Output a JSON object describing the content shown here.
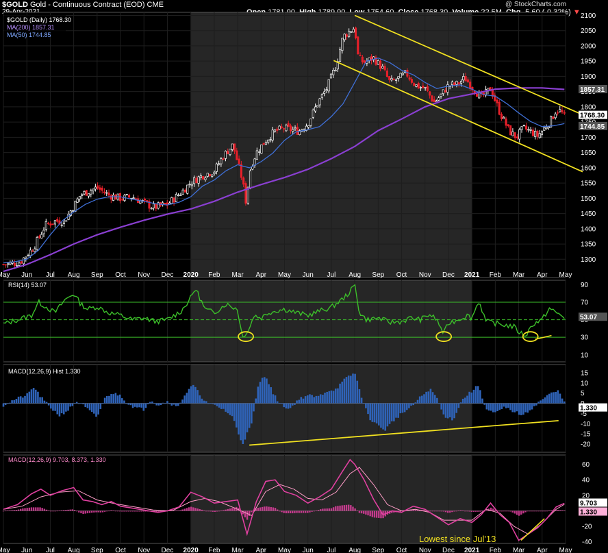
{
  "header": {
    "symbol": "$GOLD",
    "title": "Gold - Continuous Contract (EOD)",
    "exchange": "CME",
    "date": "29-Apr-2021",
    "copyright": "@ StockCharts.com",
    "ohlc": {
      "open_label": "Open",
      "open": "1781.90",
      "high_label": "High",
      "high": "1789.90",
      "low_label": "Low",
      "low": "1754.60",
      "close_label": "Close",
      "close": "1768.30",
      "volume_label": "Volume",
      "volume": "22.5M",
      "chg_label": "Chg",
      "chg": "-5.60 (-0.32%)"
    }
  },
  "legend": {
    "price": "$GOLD (Daily) 1768.30",
    "ma200": "MA(200) 1857.31",
    "ma50": "MA(50) 1744.85",
    "rsi": "RSI(14) 53.07",
    "macd_hist": "MACD(12,26,9) Hist 1.330",
    "macd": "MACD(12,26,9) 9.703, 8.373, 1.330"
  },
  "badges": {
    "ma200": "1857.31",
    "close": "1768.30",
    "ma50": "1744.85",
    "rsi": "53.07",
    "hist": "1.330",
    "macd": "9.703",
    "macd_hist": "1.330"
  },
  "annotation": "Lowest since Jul'13",
  "colors": {
    "background": "#000000",
    "shade": "#262626",
    "candle_up": "#ffffff",
    "candle_down": "#e8202a",
    "ma200": "#8a3fd1",
    "ma50": "#3f6fd6",
    "rsi": "#3cbf2a",
    "histogram": "#2f63b8",
    "macd": "#e040a0",
    "signal": "#ff9ec8",
    "trendline": "#f0e020"
  },
  "chart_data": [
    {
      "panel": "price",
      "type": "line",
      "ylim": [
        1240,
        2110
      ],
      "y_ticks": [
        1300,
        1350,
        1400,
        1450,
        1500,
        1550,
        1600,
        1650,
        1700,
        1750,
        1800,
        1850,
        1900,
        1950,
        2000,
        2050,
        2100
      ],
      "x_ticks": [
        "May",
        "Jun",
        "Jul",
        "Aug",
        "Sep",
        "Oct",
        "Nov",
        "Dec",
        "2020",
        "Feb",
        "Mar",
        "Apr",
        "May",
        "Jun",
        "Jul",
        "Aug",
        "Sep",
        "Oct",
        "Nov",
        "Dec",
        "2021",
        "Feb",
        "Mar",
        "Apr",
        "May"
      ],
      "x_months": [
        0,
        1,
        2,
        3,
        4,
        5,
        6,
        7,
        8,
        9,
        10,
        11,
        12,
        13,
        14,
        15,
        16,
        17,
        18,
        19,
        20,
        21,
        22,
        23,
        24.0
      ],
      "series": [
        {
          "name": "$GOLD",
          "x": [
            0,
            0.7,
            1.3,
            1.8,
            2.2,
            2.6,
            3.3,
            4.0,
            4.5,
            5.0,
            5.5,
            6.0,
            6.4,
            7.0,
            7.6,
            8.0,
            8.5,
            9.0,
            9.4,
            9.8,
            10.2,
            10.35,
            10.55,
            10.8,
            11.2,
            11.6,
            12.0,
            12.6,
            13.0,
            13.4,
            13.8,
            14.2,
            14.5,
            14.8,
            15.0,
            15.15,
            15.4,
            15.8,
            16.2,
            16.5,
            16.8,
            17.2,
            17.6,
            18.0,
            18.4,
            18.7,
            19.0,
            19.4,
            19.7,
            20.0,
            20.4,
            20.8,
            21.2,
            21.6,
            21.9,
            22.2,
            22.5,
            22.8,
            23.1,
            23.4,
            23.6,
            23.8,
            23.95
          ],
          "values": [
            1283,
            1290,
            1340,
            1412,
            1425,
            1425,
            1512,
            1535,
            1510,
            1500,
            1505,
            1485,
            1470,
            1480,
            1520,
            1552,
            1575,
            1590,
            1640,
            1675,
            1560,
            1490,
            1600,
            1650,
            1690,
            1720,
            1730,
            1720,
            1745,
            1810,
            1860,
            1935,
            2030,
            2050,
            2060,
            1960,
            1945,
            1960,
            1925,
            1880,
            1890,
            1910,
            1870,
            1860,
            1815,
            1840,
            1870,
            1875,
            1895,
            1865,
            1830,
            1860,
            1780,
            1720,
            1700,
            1730,
            1720,
            1705,
            1730,
            1760,
            1790,
            1785,
            1768
          ]
        },
        {
          "name": "MA(200)",
          "x": [
            0,
            1,
            2,
            3,
            4,
            5,
            6,
            7,
            8,
            9,
            10,
            11,
            12,
            13,
            14,
            15,
            16,
            17,
            18,
            19,
            20,
            21,
            22,
            23,
            23.95
          ],
          "values": [
            1260,
            1283,
            1315,
            1350,
            1380,
            1405,
            1428,
            1448,
            1465,
            1490,
            1520,
            1545,
            1568,
            1595,
            1630,
            1670,
            1722,
            1760,
            1800,
            1827,
            1842,
            1858,
            1862,
            1862,
            1857
          ]
        },
        {
          "name": "MA(50)",
          "x": [
            0,
            0.5,
            1,
            1.5,
            2,
            2.5,
            3,
            3.5,
            4,
            4.5,
            5,
            5.5,
            6,
            6.5,
            7,
            7.5,
            8,
            8.5,
            9,
            9.5,
            10,
            10.5,
            11,
            11.5,
            12,
            12.5,
            13,
            13.5,
            14,
            14.5,
            15,
            15.5,
            16,
            16.5,
            17,
            17.5,
            18,
            18.5,
            19,
            19.5,
            20,
            20.5,
            21,
            21.5,
            22,
            22.5,
            23,
            23.5,
            23.95
          ],
          "values": [
            1288,
            1292,
            1300,
            1330,
            1380,
            1425,
            1455,
            1480,
            1497,
            1505,
            1505,
            1497,
            1490,
            1482,
            1478,
            1487,
            1505,
            1540,
            1560,
            1590,
            1610,
            1600,
            1620,
            1648,
            1690,
            1718,
            1725,
            1735,
            1768,
            1810,
            1880,
            1950,
            1960,
            1945,
            1920,
            1905,
            1880,
            1860,
            1868,
            1872,
            1858,
            1840,
            1835,
            1810,
            1780,
            1752,
            1735,
            1738,
            1745
          ]
        }
      ],
      "trendlines": [
        {
          "from": [
            15.0,
            2100
          ],
          "to": [
            24.0,
            1780
          ]
        },
        {
          "from": [
            14.1,
            1952
          ],
          "to": [
            24.0,
            1593
          ]
        }
      ]
    },
    {
      "panel": "rsi",
      "type": "line",
      "ylim": [
        2,
        95
      ],
      "y_ticks": [
        10,
        30,
        50,
        70,
        90
      ],
      "reference_lines": [
        30,
        50,
        70
      ],
      "series": [
        {
          "name": "RSI(14)",
          "x": [
            0,
            0.6,
            1.2,
            1.5,
            1.8,
            2.2,
            2.6,
            3.0,
            3.3,
            3.6,
            4.0,
            4.5,
            5.0,
            5.5,
            6.0,
            6.5,
            7.0,
            7.6,
            8.0,
            8.2,
            8.6,
            9.0,
            9.5,
            10.0,
            10.2,
            10.5,
            10.7,
            11.0,
            11.3,
            11.6,
            12.0,
            12.5,
            13.0,
            13.5,
            14.0,
            14.5,
            14.8,
            15.0,
            15.2,
            15.5,
            16.0,
            16.5,
            17.0,
            17.4,
            17.8,
            18.2,
            18.5,
            18.8,
            19.0,
            19.4,
            19.8,
            20.0,
            20.3,
            20.6,
            21.0,
            21.4,
            21.8,
            22.0,
            22.3,
            22.6,
            23.0,
            23.3,
            23.6,
            23.95
          ],
          "values": [
            45,
            50,
            55,
            70,
            65,
            58,
            72,
            80,
            68,
            62,
            65,
            58,
            55,
            50,
            52,
            48,
            50,
            60,
            75,
            86,
            62,
            58,
            68,
            62,
            30,
            40,
            55,
            52,
            58,
            60,
            62,
            58,
            55,
            60,
            64,
            74,
            82,
            90,
            58,
            50,
            52,
            47,
            48,
            52,
            50,
            56,
            50,
            34,
            46,
            50,
            55,
            52,
            72,
            48,
            46,
            44,
            42,
            36,
            32,
            45,
            50,
            63,
            58,
            53
          ]
        }
      ],
      "circled_lows": [
        10.35,
        18.8,
        22.5
      ]
    },
    {
      "panel": "macd_histogram",
      "type": "bar",
      "ylim": [
        -24,
        19
      ],
      "y_ticks": [
        -20,
        -15,
        -10,
        -5,
        0,
        5,
        10,
        15
      ],
      "series": [
        {
          "name": "Hist",
          "x": [
            0,
            0.5,
            1.0,
            1.3,
            1.6,
            2.0,
            2.4,
            2.8,
            3.1,
            3.4,
            3.7,
            4.0,
            4.3,
            4.6,
            5.0,
            5.3,
            5.6,
            6.0,
            6.3,
            6.6,
            7.0,
            7.4,
            7.8,
            8.1,
            8.4,
            8.7,
            9.0,
            9.4,
            9.8,
            10.2,
            10.6,
            10.9,
            11.2,
            11.5,
            11.8,
            12.2,
            12.6,
            13.0,
            13.4,
            13.8,
            14.2,
            14.6,
            15.0,
            15.3,
            15.6,
            16.0,
            16.3,
            16.6,
            17.0,
            17.4,
            17.8,
            18.2,
            18.5,
            18.8,
            19.2,
            19.6,
            20.0,
            20.3,
            20.6,
            21.0,
            21.4,
            21.8,
            22.2,
            22.6,
            23.0,
            23.4,
            23.7,
            23.95
          ],
          "values": [
            -1,
            2,
            4,
            8,
            3,
            -2,
            -6,
            -3,
            1,
            -1,
            -4,
            -7,
            2,
            5,
            4,
            0,
            -2,
            -3,
            2,
            -1,
            1,
            -2,
            5,
            9,
            4,
            0,
            -1,
            -3,
            -7,
            -20,
            -10,
            10,
            14,
            5,
            0,
            -3,
            2,
            4,
            3,
            6,
            7,
            12,
            15,
            3,
            -7,
            -11,
            -13,
            -9,
            -5,
            -2,
            3,
            7,
            3,
            -6,
            -8,
            2,
            6,
            9,
            -3,
            -5,
            -2,
            -4,
            -6,
            -2,
            2,
            5,
            6,
            1.3
          ]
        }
      ],
      "trendlines": [
        {
          "from": [
            10.5,
            -20.5
          ],
          "to": [
            23.7,
            -8.5
          ]
        }
      ]
    },
    {
      "panel": "macd",
      "type": "line",
      "ylim": [
        -42,
        72
      ],
      "y_ticks": [
        -40,
        -20,
        0,
        20,
        40,
        60
      ],
      "series": [
        {
          "name": "MACD",
          "x": [
            0,
            0.6,
            1.2,
            1.6,
            2.0,
            2.5,
            3.0,
            3.4,
            3.8,
            4.2,
            4.6,
            5.0,
            5.4,
            5.8,
            6.2,
            6.6,
            7.0,
            7.5,
            8.0,
            8.5,
            9.0,
            9.5,
            10.0,
            10.4,
            10.8,
            11.2,
            11.6,
            12.0,
            12.5,
            13.0,
            13.5,
            14.0,
            14.5,
            14.8,
            15.0,
            15.4,
            15.8,
            16.2,
            16.6,
            17.0,
            17.5,
            18.0,
            18.5,
            19.0,
            19.5,
            20.0,
            20.4,
            20.8,
            21.2,
            21.6,
            22.0,
            22.4,
            22.8,
            23.2,
            23.6,
            23.95
          ],
          "values": [
            2,
            8,
            22,
            28,
            20,
            26,
            30,
            14,
            12,
            8,
            12,
            6,
            4,
            2,
            0,
            -2,
            0,
            5,
            24,
            18,
            10,
            12,
            14,
            -30,
            12,
            38,
            40,
            25,
            20,
            10,
            18,
            28,
            52,
            66,
            60,
            40,
            15,
            -5,
            0,
            -2,
            6,
            2,
            -8,
            -18,
            -10,
            -15,
            -5,
            10,
            -5,
            -15,
            -38,
            -30,
            -22,
            -10,
            5,
            9.7
          ]
        },
        {
          "name": "Signal",
          "x": [
            0,
            0.8,
            1.6,
            2.4,
            3.2,
            4.0,
            4.8,
            5.6,
            6.4,
            7.2,
            8.0,
            8.6,
            9.2,
            10.0,
            10.6,
            11.2,
            11.8,
            12.4,
            13.0,
            13.6,
            14.2,
            14.8,
            15.2,
            15.8,
            16.4,
            17.0,
            17.6,
            18.2,
            18.8,
            19.4,
            20.0,
            20.6,
            21.2,
            21.8,
            22.4,
            23.0,
            23.6,
            23.95
          ],
          "values": [
            2,
            6,
            18,
            24,
            26,
            14,
            9,
            5,
            1,
            0,
            12,
            16,
            12,
            2,
            -6,
            25,
            34,
            28,
            16,
            14,
            24,
            48,
            56,
            34,
            8,
            0,
            2,
            -2,
            -12,
            -12,
            -12,
            2,
            -3,
            -20,
            -30,
            -16,
            2,
            8.4
          ]
        }
      ]
    }
  ]
}
